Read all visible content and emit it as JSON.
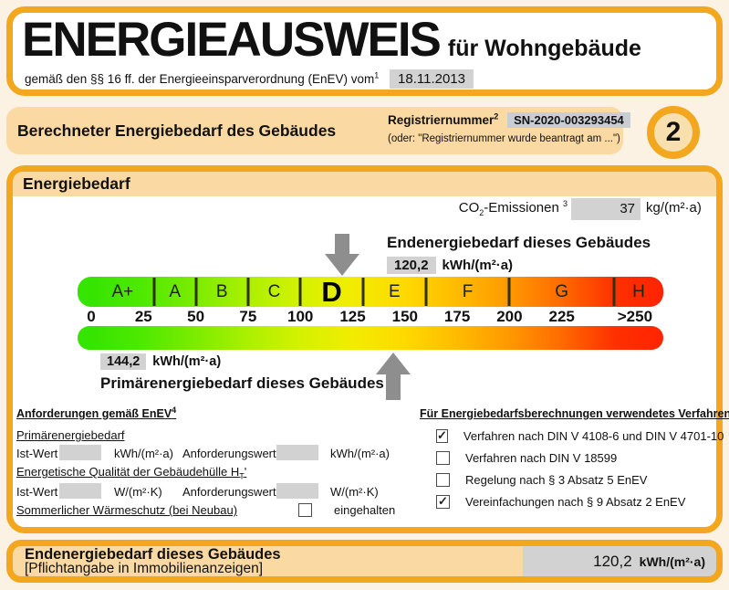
{
  "colors": {
    "accent_orange": "#F3A71E",
    "peach_fill": "#FBD9A3",
    "gray_value_box": "#D2D2D2",
    "arrow_gray": "#8E8E8E"
  },
  "header": {
    "title": "ENERGIEAUSWEIS",
    "subtitle": "für Wohngebäude",
    "law_text": "gemäß den §§ 16 ff. der Energieeinsparverordnung (EnEV) vom",
    "law_footnote": "1",
    "date_value": "18.11.2013"
  },
  "section": {
    "title": "Berechneter Energiebedarf des Gebäudes",
    "registry_label": "Registriernummer",
    "registry_footnote": "2",
    "registry_value": "SN-2020-003293454",
    "registry_alt": "(oder: \"Registriernummer wurde beantragt am ...\")",
    "page_badge": "2"
  },
  "energiebedarf": {
    "title": "Energiebedarf",
    "co2_prefix": "CO",
    "co2_sub": "2",
    "co2_suffix": "-Emissionen",
    "co2_footnote": "3",
    "co2_value": "37",
    "co2_unit": "kg/(m²·a)",
    "endenergie_label": "Endenergiebedarf dieses Gebäudes",
    "endenergie_value": "120,2",
    "endenergie_unit": "kWh/(m²·a)",
    "primaer_value": "144,2",
    "primaer_unit": "kWh/(m²·a)",
    "primaer_label": "Primärenergiebedarf dieses Gebäudes",
    "scale": {
      "bands": [
        {
          "label": "A+",
          "from": 0,
          "to": 30
        },
        {
          "label": "A",
          "from": 30,
          "to": 50
        },
        {
          "label": "B",
          "from": 50,
          "to": 75
        },
        {
          "label": "C",
          "from": 75,
          "to": 100
        },
        {
          "label": "D",
          "from": 100,
          "to": 130,
          "highlight": true
        },
        {
          "label": "E",
          "from": 130,
          "to": 160
        },
        {
          "label": "F",
          "from": 160,
          "to": 200
        },
        {
          "label": "G",
          "from": 200,
          "to": 250
        },
        {
          "label": "H",
          "from": 250,
          "to": 280
        }
      ],
      "tick_values": [
        30,
        50,
        75,
        100,
        130,
        160,
        200,
        250
      ],
      "axis": [
        {
          "label": "0",
          "value": 0
        },
        {
          "label": "25",
          "value": 25
        },
        {
          "label": "50",
          "value": 50
        },
        {
          "label": "75",
          "value": 75
        },
        {
          "label": "100",
          "value": 100
        },
        {
          "label": "125",
          "value": 125
        },
        {
          "label": "150",
          "value": 150
        },
        {
          "label": "175",
          "value": 175
        },
        {
          "label": "200",
          "value": 200
        },
        {
          "label": "225",
          "value": 225
        },
        {
          "label": ">250",
          "value": 260
        }
      ],
      "gradient_values": [
        0,
        25,
        50,
        75,
        100,
        125,
        150,
        175,
        200,
        225,
        250,
        273
      ],
      "gradient_colors": [
        "#35E400",
        "#50E900",
        "#7CEC00",
        "#ABF000",
        "#D4F200",
        "#F2EC00",
        "#FFD900",
        "#FFBB00",
        "#FF9900",
        "#FF6A00",
        "#FF3000",
        "#FF2400"
      ],
      "endenergie_marker": 120.2,
      "primaer_marker": 144.2
    }
  },
  "anforderungen": {
    "heading": "Anforderungen gemäß EnEV",
    "heading_footnote": "4",
    "primaer_section": "Primärenergiebedarf",
    "row1": {
      "ist_label": "Ist-Wert",
      "ist_value": "",
      "ist_unit": "kWh/(m²·a)",
      "anf_label": "Anforderungswert",
      "anf_value": "",
      "anf_unit": "kWh/(m²·a)"
    },
    "huelle_prefix": "Energetische Qualität der Gebäudehülle H",
    "huelle_sub": "T",
    "huelle_prime": "'",
    "row2": {
      "ist_label": "Ist-Wert",
      "ist_value": "",
      "ist_unit": "W/(m²·K)",
      "anf_label": "Anforderungswert",
      "anf_value": "",
      "anf_unit": "W/(m²·K)"
    },
    "sommer_section": "Sommerlicher Wärmeschutz (bei Neubau)",
    "sommer_checkbox_label": "eingehalten",
    "sommer_checked": false
  },
  "verfahren": {
    "heading": "Für Energiebedarfsberechnungen verwendetes Verfahren",
    "items": [
      {
        "label": "Verfahren nach DIN V 4108-6 und DIN V 4701-10",
        "checked": true
      },
      {
        "label": "Verfahren nach DIN V 18599",
        "checked": false
      },
      {
        "label": "Regelung nach § 3 Absatz 5 EnEV",
        "checked": false
      },
      {
        "label": "Vereinfachungen nach § 9 Absatz 2 EnEV",
        "checked": true
      }
    ]
  },
  "footer": {
    "line1": "Endenergiebedarf dieses Gebäudes",
    "line2": "[Pflichtangabe in Immobilienanzeigen]",
    "value": "120,2",
    "unit": "kWh/(m²·a)"
  }
}
